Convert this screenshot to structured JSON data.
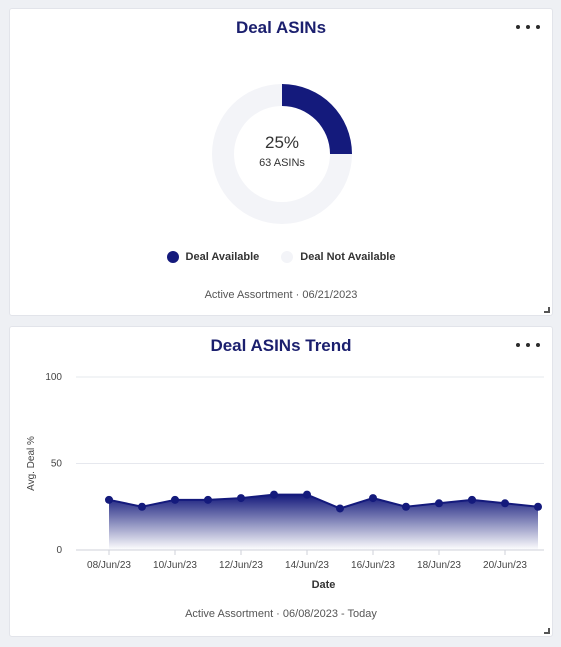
{
  "colors": {
    "accent": "#141a7c",
    "track": "#f3f4f8",
    "title": "#1b1f6e"
  },
  "deal_asins_card": {
    "title": "Deal ASINs",
    "more_icon": "more-horizontal-icon",
    "center_percent": "25%",
    "center_count": "63 ASINs",
    "legend": [
      {
        "label": "Deal Available",
        "color": "#141a7c"
      },
      {
        "label": "Deal Not Available",
        "color": "#f3f4f8"
      }
    ],
    "footer": "Active Assortment · 06/21/2023"
  },
  "deal_trend_card": {
    "title": "Deal ASINs Trend",
    "more_icon": "more-horizontal-icon",
    "footer": "Active Assortment · 06/08/2023 - Today"
  },
  "chart_data": [
    {
      "type": "pie",
      "title": "Deal ASINs",
      "categories": [
        "Deal Available",
        "Deal Not Available"
      ],
      "values": [
        25,
        75
      ],
      "center_label": "25%",
      "center_sublabel": "63 ASINs",
      "legend": "bottom"
    },
    {
      "type": "area",
      "title": "Deal ASINs Trend",
      "xlabel": "Date",
      "ylabel": "Avg. Deal %",
      "ylim": [
        0,
        100
      ],
      "yticks": [
        0,
        50,
        100
      ],
      "grid": true,
      "x": [
        "08/Jun/23",
        "09/Jun/23",
        "10/Jun/23",
        "11/Jun/23",
        "12/Jun/23",
        "13/Jun/23",
        "14/Jun/23",
        "15/Jun/23",
        "16/Jun/23",
        "17/Jun/23",
        "18/Jun/23",
        "19/Jun/23",
        "20/Jun/23",
        "21/Jun/23"
      ],
      "xtick_labels": [
        "08/Jun/23",
        "10/Jun/23",
        "12/Jun/23",
        "14/Jun/23",
        "16/Jun/23",
        "18/Jun/23",
        "20/Jun/23"
      ],
      "series": [
        {
          "values": [
            29,
            25,
            29,
            29,
            30,
            32,
            32,
            24,
            30,
            25,
            27,
            29,
            27,
            25
          ]
        }
      ]
    }
  ]
}
